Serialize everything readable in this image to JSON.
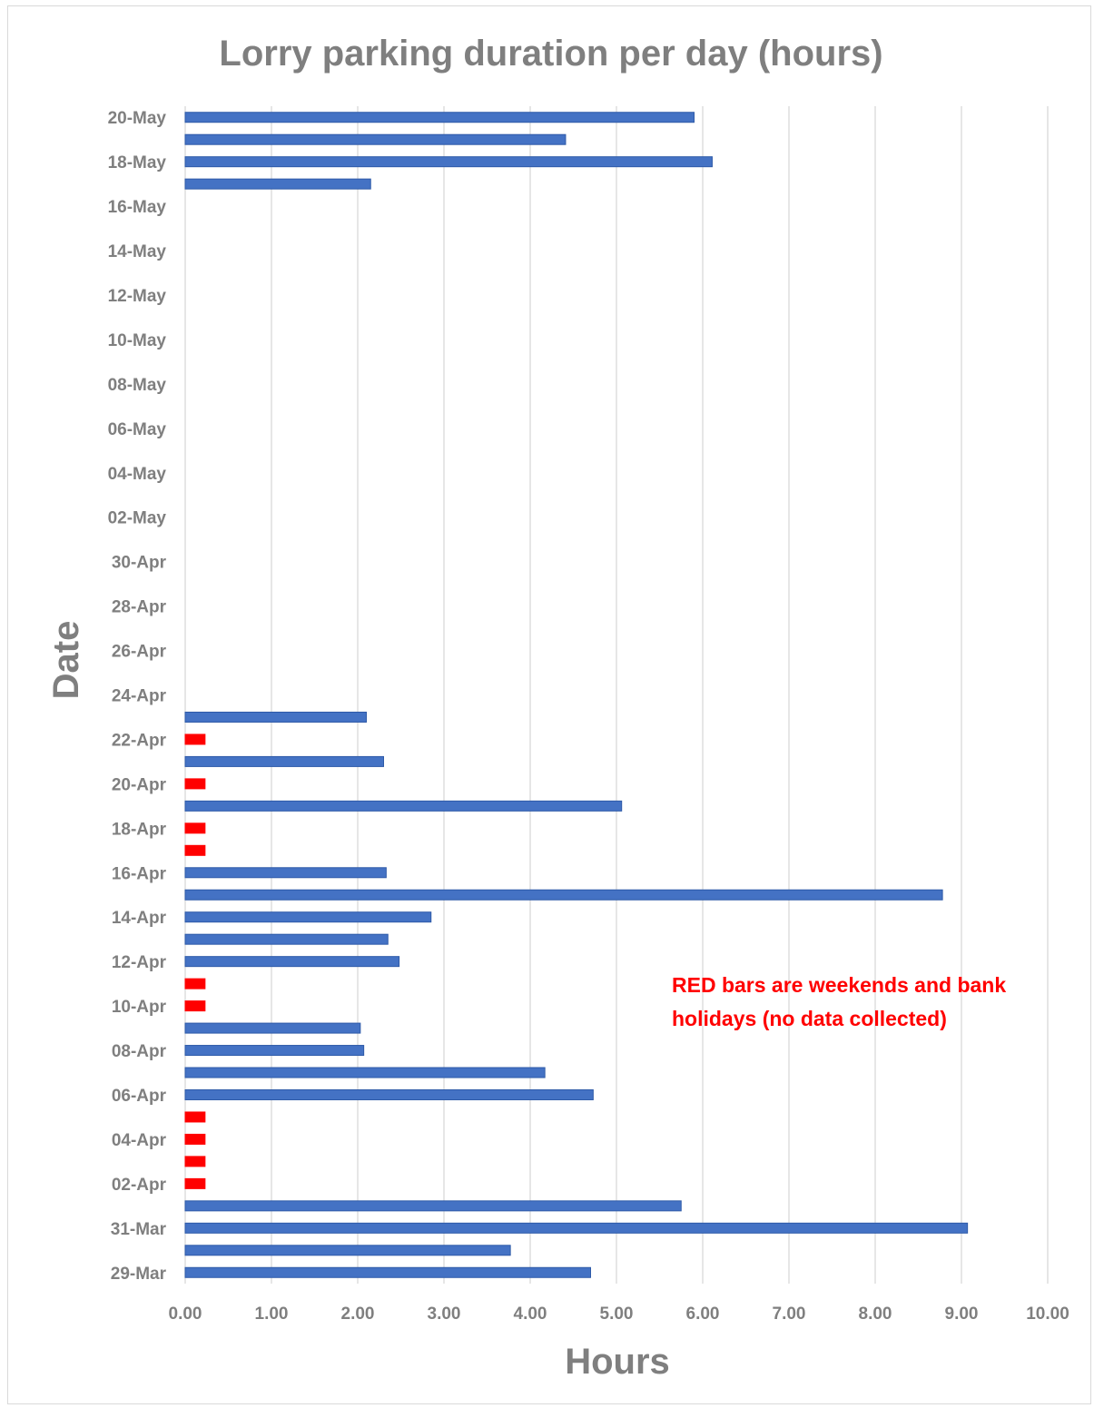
{
  "chart_data": {
    "type": "bar",
    "orientation": "horizontal",
    "title": "Lorry parking duration per day (hours)",
    "xlabel": "Hours",
    "ylabel": "Date",
    "xlim": [
      0,
      10
    ],
    "x_ticks": [
      "0.00",
      "1.00",
      "2.00",
      "3.00",
      "4.00",
      "5.00",
      "6.00",
      "7.00",
      "8.00",
      "9.00",
      "10.00"
    ],
    "grid": "vertical",
    "annotation": {
      "lines": [
        "RED bars are weekends and bank",
        "holidays (no data collected)"
      ],
      "color": "#ff0000"
    },
    "colors": {
      "weekday": "#4472c4",
      "weekday_edge": "#2e5aa8",
      "weekend": "#ff0000",
      "grid": "#d9d9d9",
      "text": "#7f7f7f"
    },
    "categories": [
      "29-Mar",
      "30-Mar",
      "31-Mar",
      "01-Apr",
      "02-Apr",
      "03-Apr",
      "04-Apr",
      "05-Apr",
      "06-Apr",
      "07-Apr",
      "08-Apr",
      "09-Apr",
      "10-Apr",
      "11-Apr",
      "12-Apr",
      "13-Apr",
      "14-Apr",
      "15-Apr",
      "16-Apr",
      "17-Apr",
      "18-Apr",
      "19-Apr",
      "20-Apr",
      "21-Apr",
      "22-Apr",
      "23-Apr",
      "24-Apr",
      "25-Apr",
      "26-Apr",
      "27-Apr",
      "28-Apr",
      "29-Apr",
      "30-Apr",
      "01-May",
      "02-May",
      "03-May",
      "04-May",
      "05-May",
      "06-May",
      "07-May",
      "08-May",
      "09-May",
      "10-May",
      "11-May",
      "12-May",
      "13-May",
      "14-May",
      "15-May",
      "16-May",
      "17-May",
      "18-May",
      "19-May",
      "20-May"
    ],
    "tick_labels": [
      "29-Mar",
      "31-Mar",
      "02-Apr",
      "04-Apr",
      "06-Apr",
      "08-Apr",
      "10-Apr",
      "12-Apr",
      "14-Apr",
      "16-Apr",
      "18-Apr",
      "20-Apr",
      "22-Apr",
      "24-Apr",
      "26-Apr",
      "28-Apr",
      "30-Apr",
      "02-May",
      "04-May",
      "06-May",
      "08-May",
      "10-May",
      "12-May",
      "14-May",
      "16-May",
      "18-May",
      "20-May"
    ],
    "values": [
      4.7,
      3.77,
      9.07,
      5.75,
      0.23,
      0.23,
      0.23,
      0.23,
      4.73,
      4.17,
      2.07,
      2.03,
      0.23,
      0.23,
      2.48,
      2.35,
      2.85,
      8.78,
      2.33,
      0.23,
      0.23,
      5.06,
      0.23,
      2.3,
      0.23,
      2.1,
      null,
      null,
      null,
      null,
      null,
      null,
      null,
      null,
      null,
      null,
      null,
      null,
      null,
      null,
      null,
      null,
      null,
      null,
      null,
      null,
      null,
      null,
      null,
      2.15,
      6.11,
      4.41,
      5.9
    ],
    "weekend": [
      false,
      false,
      false,
      false,
      true,
      true,
      true,
      true,
      false,
      false,
      false,
      false,
      true,
      true,
      false,
      false,
      false,
      false,
      false,
      true,
      true,
      false,
      true,
      false,
      true,
      false,
      false,
      false,
      false,
      false,
      false,
      false,
      false,
      false,
      false,
      false,
      false,
      false,
      false,
      false,
      false,
      false,
      false,
      false,
      false,
      false,
      false,
      false,
      false,
      false,
      false,
      false,
      false
    ]
  }
}
